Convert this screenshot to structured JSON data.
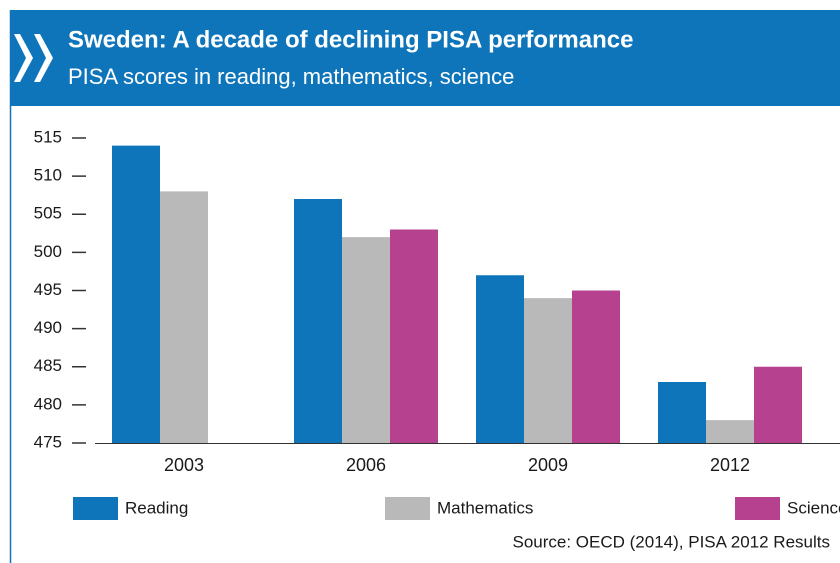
{
  "chart_data": {
    "type": "bar",
    "title": "Sweden: A decade of declining PISA performance",
    "subtitle": "PISA scores in reading, mathematics, science",
    "source": "Source: OECD (2014), PISA 2012 Results",
    "categories": [
      "2003",
      "2006",
      "2009",
      "2012"
    ],
    "series": [
      {
        "name": "Reading",
        "color": "#0e75bb",
        "values": [
          514,
          507,
          497,
          483
        ]
      },
      {
        "name": "Mathematics",
        "color": "#b9b9b9",
        "values": [
          508,
          502,
          494,
          478
        ]
      },
      {
        "name": "Science",
        "color": "#b5418f",
        "values": [
          null,
          503,
          495,
          485
        ]
      }
    ],
    "ylim": [
      475,
      515
    ],
    "yticks": [
      475,
      480,
      485,
      490,
      495,
      500,
      505,
      510,
      515
    ]
  }
}
